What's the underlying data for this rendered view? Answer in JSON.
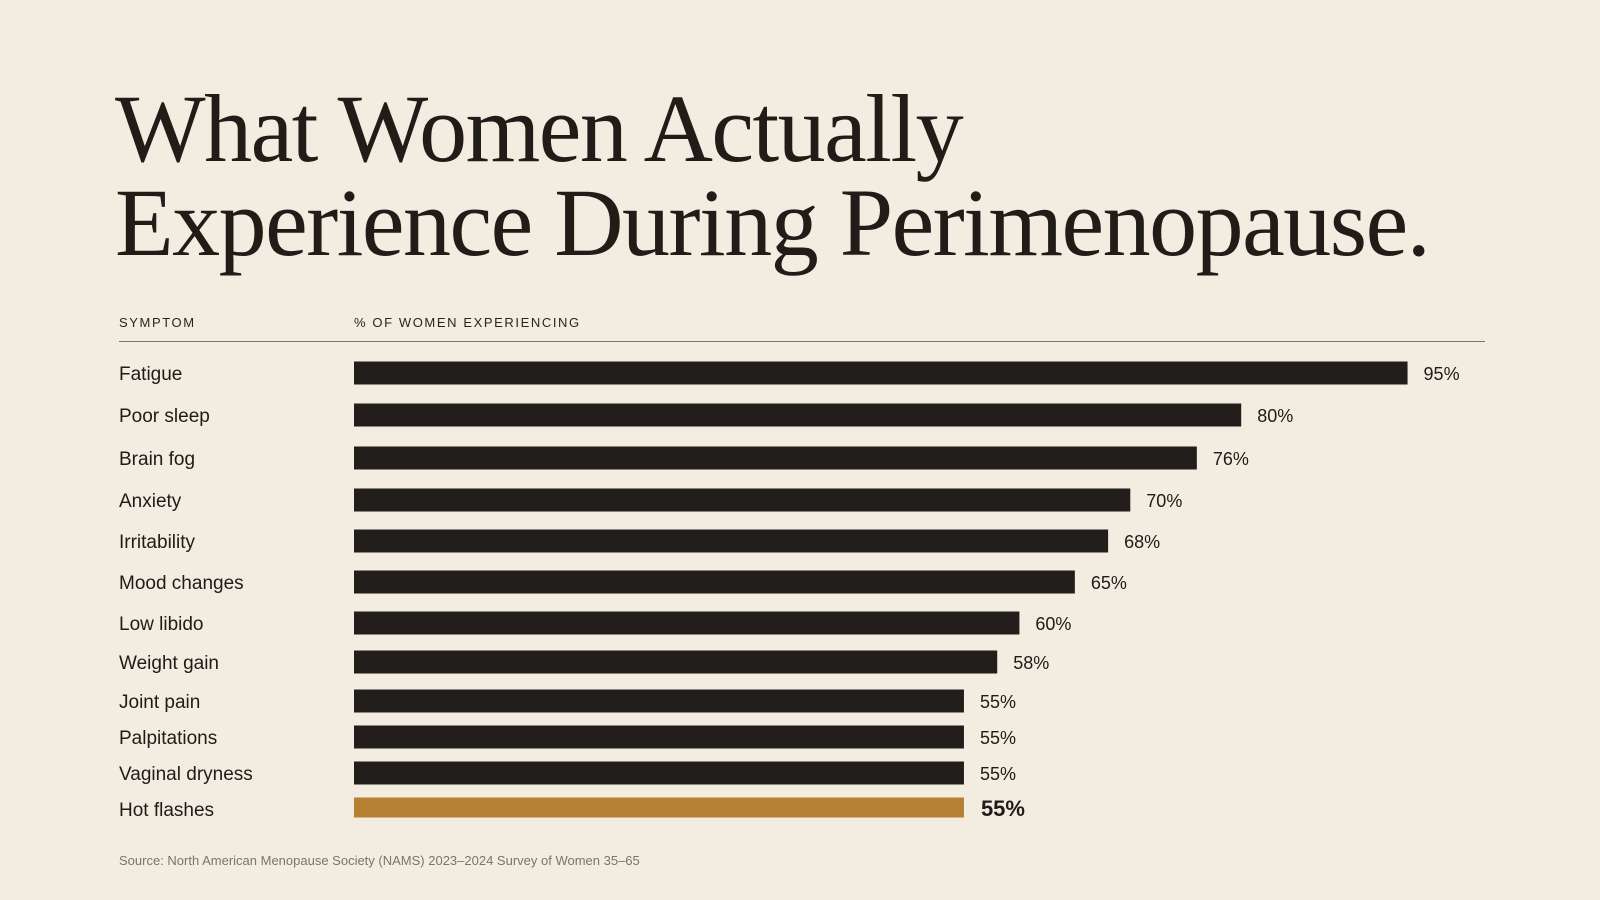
{
  "title_line1": "What Women Actually",
  "title_line2": "Experience During Perimenopause.",
  "header": {
    "symptom": "SYMPTOM",
    "percent": "% OF WOMEN EXPERIENCING"
  },
  "source": "Source: North American Menopause Society (NAMS) 2023–2024 Survey of Women 35–65",
  "colors": {
    "background": "#f3ece0",
    "bar": "#221e1b",
    "highlight": "#b68132",
    "text": "#1f1b17"
  },
  "chart_data": {
    "type": "bar",
    "orientation": "horizontal",
    "categories": [
      "Fatigue",
      "Poor sleep",
      "Brain fog",
      "Anxiety",
      "Irritability",
      "Mood changes",
      "Low libido",
      "Weight gain",
      "Joint pain",
      "Palpitations",
      "Vaginal dryness",
      "Hot flashes"
    ],
    "values": [
      95,
      80,
      76,
      70,
      68,
      65,
      60,
      58,
      55,
      55,
      55,
      55
    ],
    "value_labels": [
      "95%",
      "80%",
      "76%",
      "70%",
      "68%",
      "65%",
      "60%",
      "58%",
      "55%",
      "55%",
      "55%",
      "55%"
    ],
    "highlighted_category": "Hot flashes",
    "xlabel": "% OF WOMEN EXPERIENCING",
    "ylabel": "SYMPTOM",
    "xlim": [
      0,
      100
    ],
    "grid": false,
    "legend": "none"
  }
}
